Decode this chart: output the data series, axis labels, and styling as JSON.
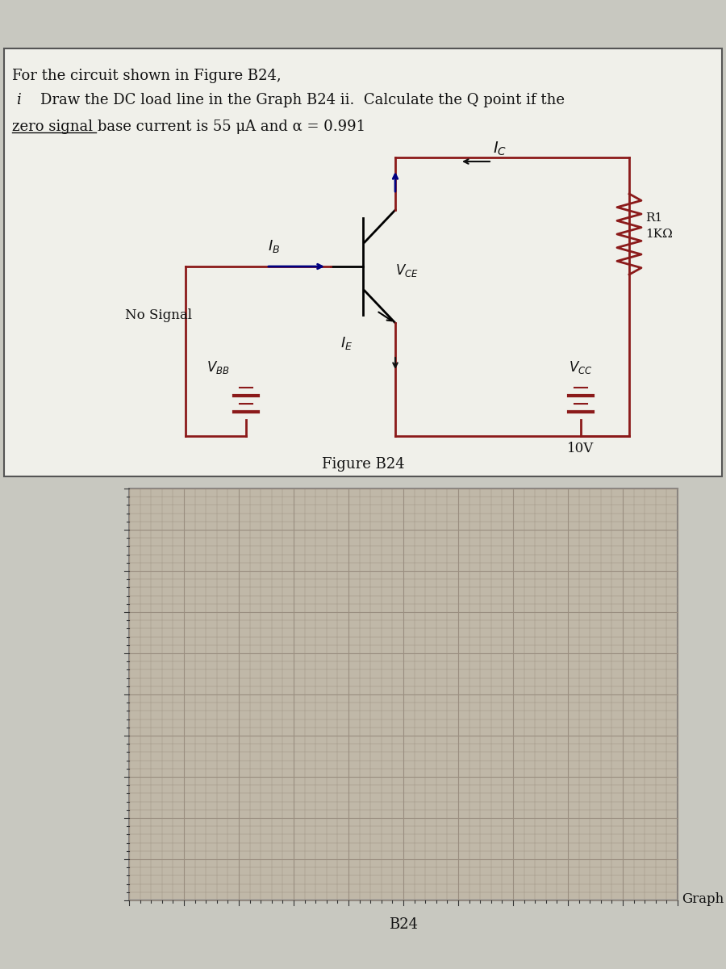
{
  "bg_color": "#c8c8c0",
  "page_bg": "#c8c8c0",
  "box_bg": "#f0f0ea",
  "header_text": "For the circuit shown in Figure B24,",
  "line1_bullet": "i",
  "line1_text": "Draw the DC load line in the Graph B24 ii.  Calculate the Q point if the",
  "line2_text": "zero signal base current is 55 μA and α = 0.991",
  "figure_label": "Figure B24",
  "graph_label": "Graph",
  "bottom_label": "B24",
  "circuit_color": "#8b1a1a",
  "transistor_color": "#000000",
  "arrow_color": "#000080",
  "grid_color": "#b0a090",
  "grid_bg": "#c0b8a8",
  "graph_border": "#808080"
}
